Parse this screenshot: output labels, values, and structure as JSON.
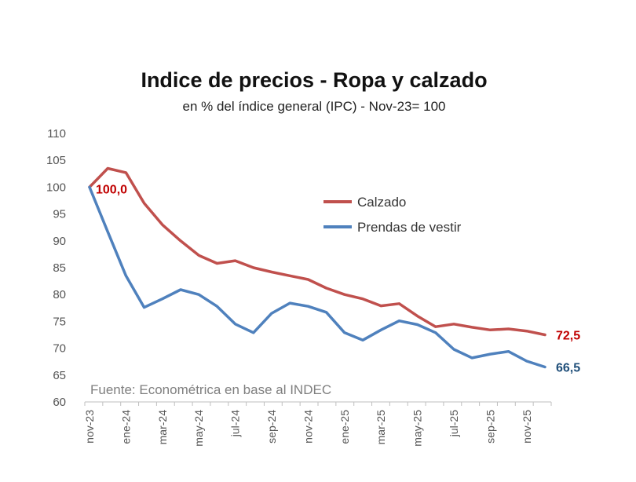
{
  "chart_data": {
    "type": "line",
    "title": "Indice de precios - Ropa y calzado",
    "subtitle": "en % del índice general (IPC) - Nov-23= 100",
    "x": [
      "nov-23",
      "dic-23",
      "ene-24",
      "feb-24",
      "mar-24",
      "abr-24",
      "may-24",
      "jun-24",
      "jul-24",
      "ago-24",
      "sep-24",
      "oct-24",
      "nov-24",
      "dic-24",
      "ene-25",
      "feb-25",
      "mar-25",
      "abr-25",
      "may-25",
      "jun-25",
      "jul-25",
      "ago-25",
      "sep-25",
      "oct-25",
      "nov-25",
      "dic-25"
    ],
    "xtick_labels": [
      "nov-23",
      "ene-24",
      "mar-24",
      "may-24",
      "jul-24",
      "sep-24",
      "nov-24",
      "ene-25",
      "mar-25",
      "may-25",
      "jul-25",
      "sep-25",
      "nov-25"
    ],
    "ylim": [
      60,
      110
    ],
    "yticks": [
      "60",
      "65",
      "70",
      "75",
      "80",
      "85",
      "90",
      "95",
      "100",
      "105",
      "110"
    ],
    "series": [
      {
        "name": "Calzado",
        "color": "#c0504d",
        "values": [
          100,
          103.5,
          102.7,
          97,
          93,
          90,
          87.3,
          85.8,
          86.3,
          85,
          84.2,
          83.5,
          82.8,
          81.2,
          80,
          79.2,
          77.9,
          78.3,
          76,
          74,
          74.5,
          73.9,
          73.4,
          73.6,
          73.2,
          72.5
        ]
      },
      {
        "name": "Prendas de vestir",
        "color": "#4f81bd",
        "values": [
          100,
          91.7,
          83.5,
          77.6,
          79.2,
          80.9,
          80,
          77.8,
          74.5,
          72.9,
          76.5,
          78.4,
          77.8,
          76.7,
          72.9,
          71.5,
          73.4,
          75.1,
          74.4,
          72.9,
          69.8,
          68.2,
          68.9,
          69.4,
          67.6,
          66.5
        ]
      }
    ],
    "data_labels": [
      {
        "text": "100,0",
        "series": "Calzado",
        "point": 0
      },
      {
        "text": "72,5",
        "series": "Calzado",
        "point": 25
      },
      {
        "text": "66,5",
        "series": "Prendas de vestir",
        "point": 25
      }
    ],
    "legend": "center-right",
    "grid": false,
    "source": "Fuente: Econométrica en base al INDEC"
  }
}
